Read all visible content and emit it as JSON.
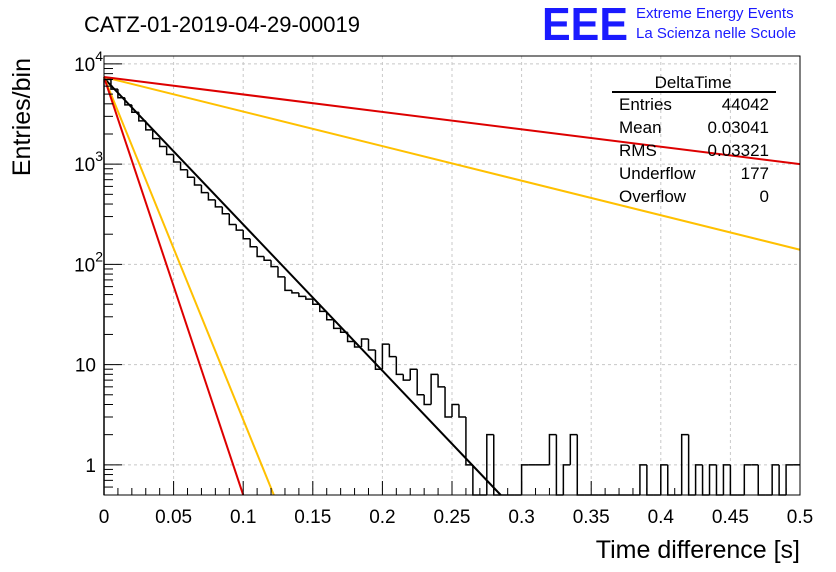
{
  "chart_data": {
    "type": "histogram",
    "title": "CATZ-01-2019-04-29-00019",
    "xlabel": "Time difference [s]",
    "ylabel": "Entries/bin",
    "x_range": [
      0,
      0.5
    ],
    "y_range": [
      0.5,
      12000
    ],
    "y_scale": "log",
    "grid": true,
    "x_ticks": [
      "0",
      "0.05",
      "0.1",
      "0.15",
      "0.2",
      "0.25",
      "0.3",
      "0.35",
      "0.4",
      "0.45",
      "0.5"
    ],
    "y_ticks": [
      {
        "value": 1,
        "label": "1"
      },
      {
        "value": 10,
        "label": "10"
      },
      {
        "value": 100,
        "label": "10",
        "exp": "2"
      },
      {
        "value": 1000,
        "label": "10",
        "exp": "3"
      },
      {
        "value": 10000,
        "label": "10",
        "exp": "4"
      }
    ],
    "bin_width": 0.005,
    "histogram_counts": [
      7000,
      5600,
      4600,
      3900,
      3300,
      2700,
      2200,
      1800,
      1500,
      1250,
      1050,
      880,
      740,
      620,
      520,
      440,
      375,
      320,
      250,
      220,
      180,
      150,
      120,
      110,
      95,
      75,
      55,
      52,
      48,
      45,
      40,
      34,
      28,
      23,
      21,
      17,
      15,
      18,
      14,
      9,
      16,
      12,
      8,
      7,
      9,
      5,
      4,
      8,
      6,
      3,
      4,
      3,
      1,
      0.5,
      0.5,
      2,
      0.5,
      0.5,
      0.5,
      0.5,
      1,
      1,
      1,
      1,
      2,
      0.5,
      1,
      2,
      0.5,
      0.5,
      0.5,
      0.5,
      0.5,
      0.5,
      0.5,
      0.5,
      0.5,
      1,
      0.5,
      0.5,
      1,
      0.5,
      0.5,
      2,
      0.5,
      1,
      0.5,
      1,
      0.5,
      1,
      0.5,
      0.5,
      1,
      1,
      0.5,
      0.5,
      1,
      0.5,
      1,
      1
    ],
    "fit_lines": [
      {
        "color": "#000000",
        "points": [
          [
            0,
            7200
          ],
          [
            0.285,
            0.5
          ]
        ]
      },
      {
        "color": "#ffc000",
        "points": [
          [
            0,
            7400
          ],
          [
            0.122,
            0.5
          ]
        ]
      },
      {
        "color": "#dd0000",
        "points": [
          [
            0,
            7400
          ],
          [
            0.1,
            0.5
          ]
        ]
      },
      {
        "color": "#ffc000",
        "points": [
          [
            0,
            7400
          ],
          [
            0.5,
            140
          ]
        ]
      },
      {
        "color": "#dd0000",
        "points": [
          [
            0,
            7400
          ],
          [
            0.5,
            1000
          ]
        ]
      }
    ],
    "stats_box": {
      "title": "DeltaTime",
      "rows": [
        {
          "label": "Entries",
          "value": "44042"
        },
        {
          "label": "Mean",
          "value": "0.03041"
        },
        {
          "label": "RMS",
          "value": "0.03321"
        },
        {
          "label": "Underflow",
          "value": "177"
        },
        {
          "label": "Overflow",
          "value": "0"
        }
      ]
    }
  },
  "logo": {
    "text": "EEE",
    "line1": "Extreme Energy Events",
    "line2": "La Scienza nelle Scuole"
  }
}
